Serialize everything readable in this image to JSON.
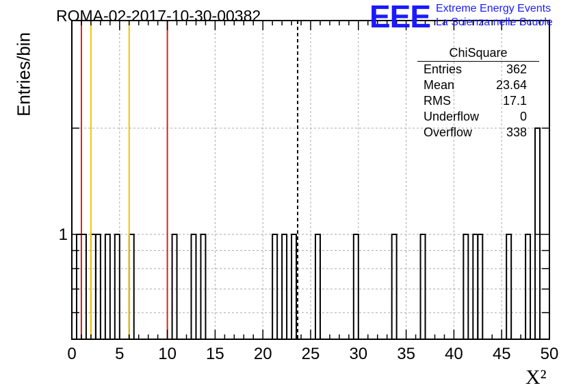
{
  "chart_data": {
    "type": "bar",
    "title": "ROMA-02-2017-10-30-00382",
    "xlabel": "X²",
    "ylabel": "Entries/bin",
    "xlim": [
      0,
      50
    ],
    "ylog": true,
    "x_ticks": [
      "0",
      "5",
      "10",
      "15",
      "20",
      "25",
      "30",
      "35",
      "40",
      "45",
      "50"
    ],
    "y_tick_labels": [
      "1"
    ],
    "bin_width": 0.5,
    "bins": [
      {
        "x": 0.5,
        "count": 1
      },
      {
        "x": 1.0,
        "count": 1
      },
      {
        "x": 2.0,
        "count": 1
      },
      {
        "x": 2.5,
        "count": 1
      },
      {
        "x": 3.5,
        "count": 1
      },
      {
        "x": 4.5,
        "count": 1
      },
      {
        "x": 6.0,
        "count": 1
      },
      {
        "x": 10.5,
        "count": 1
      },
      {
        "x": 12.5,
        "count": 1
      },
      {
        "x": 13.5,
        "count": 1
      },
      {
        "x": 21.0,
        "count": 1
      },
      {
        "x": 22.0,
        "count": 1
      },
      {
        "x": 23.0,
        "count": 1
      },
      {
        "x": 25.5,
        "count": 1
      },
      {
        "x": 29.5,
        "count": 1
      },
      {
        "x": 33.5,
        "count": 1
      },
      {
        "x": 36.5,
        "count": 1
      },
      {
        "x": 41.0,
        "count": 1
      },
      {
        "x": 42.0,
        "count": 1
      },
      {
        "x": 42.5,
        "count": 1
      },
      {
        "x": 45.5,
        "count": 1
      },
      {
        "x": 47.5,
        "count": 1
      },
      {
        "x": 48.5,
        "count": 2
      }
    ],
    "lines": [
      {
        "x": 1.0,
        "color": "#e0201b"
      },
      {
        "x": 2.0,
        "color": "#f5c400"
      },
      {
        "x": 6.0,
        "color": "#f5c400"
      },
      {
        "x": 10.0,
        "color": "#e0201b"
      },
      {
        "x": 23.64,
        "color": "#000000",
        "dashed": true
      }
    ],
    "grid": true
  },
  "logo": {
    "mark": "EEE",
    "line1": "Extreme Energy Events",
    "line2": "La Scienza nelle Scuole"
  },
  "stats": {
    "title": "ChiSquare",
    "rows": [
      {
        "label": "Entries",
        "value": "362"
      },
      {
        "label": "Mean",
        "value": "23.64"
      },
      {
        "label": "RMS",
        "value": "17.1"
      },
      {
        "label": "Underflow",
        "value": "0"
      },
      {
        "label": "Overflow",
        "value": "338"
      }
    ]
  }
}
